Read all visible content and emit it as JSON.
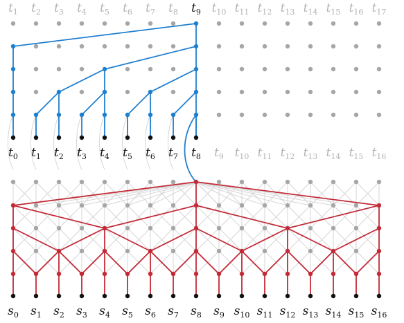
{
  "top_labels": {
    "letter": "t",
    "subs": [
      "1",
      "2",
      "3",
      "4",
      "5",
      "6",
      "7",
      "8",
      "9",
      "10",
      "11",
      "12",
      "13",
      "14",
      "15",
      "16",
      "17"
    ],
    "highlight_index": 8
  },
  "mid_labels": {
    "letter": "t",
    "subs": [
      "0",
      "1",
      "2",
      "3",
      "4",
      "5",
      "6",
      "7",
      "8",
      "9",
      "10",
      "11",
      "12",
      "13",
      "14",
      "15",
      "16"
    ],
    "highlight_count": 9
  },
  "bottom_labels": {
    "letter": "s",
    "subs": [
      "0",
      "1",
      "2",
      "3",
      "4",
      "5",
      "6",
      "7",
      "8",
      "9",
      "10",
      "11",
      "12",
      "13",
      "14",
      "15",
      "16"
    ]
  },
  "colors": {
    "grid_dot": "#a6a6a6",
    "active_dot": "#111111",
    "faded_label": "#b3b3b3",
    "label": "#111111",
    "blue": "#1f7fcf",
    "red": "#c22a36",
    "light_line": "#d6d6d6"
  },
  "blue_tree": {
    "parent_of_leaf": [
      1,
      2,
      2,
      2,
      3,
      3,
      3,
      3,
      4
    ],
    "levels": [
      {
        "level": 1,
        "connects": [
          [
            0,
            1
          ],
          [
            1,
            2
          ],
          [
            2,
            2
          ],
          [
            3,
            3
          ],
          [
            4,
            4
          ],
          [
            5,
            5
          ],
          [
            6,
            6
          ],
          [
            7,
            7
          ],
          [
            8,
            8
          ]
        ]
      },
      {
        "level": 2,
        "connects": [
          [
            1,
            2
          ],
          [
            2,
            2
          ],
          [
            3,
            3
          ],
          [
            4,
            4
          ],
          [
            5,
            5
          ],
          [
            6,
            7
          ],
          [
            7,
            7
          ],
          [
            8,
            8
          ]
        ]
      }
    ]
  }
}
